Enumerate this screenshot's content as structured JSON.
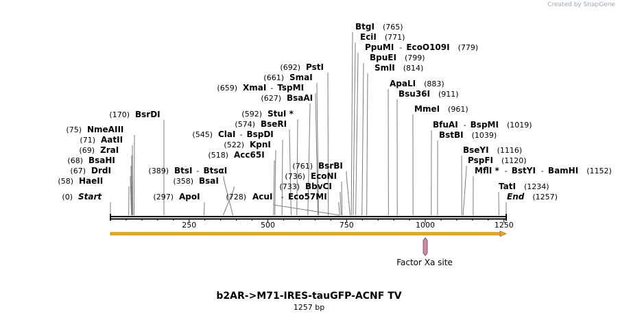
{
  "watermark": "Created by SnapGene",
  "title": "b2AR->M71-IRES-tauGFP-ACNF TV",
  "length_label": "1257 bp",
  "sequence_length": 1257,
  "ruler": {
    "ticks": [
      250,
      500,
      750,
      1000,
      1250
    ]
  },
  "feature": {
    "name": "Factor Xa site",
    "position": 1000,
    "color": "#d08aa6"
  },
  "orf": {
    "start": 1,
    "end": 1257,
    "color": "#f5a623"
  },
  "sites": [
    {
      "label": "Start",
      "pos": 0,
      "pos_label": "(0)",
      "italic": true,
      "side": "left"
    },
    {
      "label": "HaeII",
      "pos": 58,
      "pos_label": "(58)",
      "side": "left"
    },
    {
      "label": "DrdI",
      "pos": 67,
      "pos_label": "(67)",
      "side": "left"
    },
    {
      "label": "BsaHI",
      "pos": 68,
      "pos_label": "(68)",
      "side": "left"
    },
    {
      "label": "ZraI",
      "pos": 69,
      "pos_label": "(69)",
      "side": "left"
    },
    {
      "label": "AatII",
      "pos": 71,
      "pos_label": "(71)",
      "side": "left"
    },
    {
      "label": "NmeAIII",
      "pos": 75,
      "pos_label": "(75)",
      "side": "left"
    },
    {
      "label": "BsrDI",
      "pos": 170,
      "pos_label": "(170)",
      "side": "left"
    },
    {
      "label": "ApoI",
      "pos": 297,
      "pos_label": "(297)",
      "side": "left"
    },
    {
      "label": "BsaI",
      "pos": 358,
      "pos_label": "(358)",
      "side": "left"
    },
    {
      "label": "BtsI",
      "label2": "BtsαI",
      "pos": 389,
      "pos_label": "(389)",
      "side": "left"
    },
    {
      "label": "AcuI",
      "pos": 728,
      "pos_label": "(728)",
      "side": "right"
    },
    {
      "label": "Acc65I",
      "pos": 518,
      "pos_label": "(518)",
      "side": "left"
    },
    {
      "label": "KpnI",
      "pos": 522,
      "pos_label": "(522)",
      "side": "left"
    },
    {
      "label": "ClaI",
      "label2": "BspDI",
      "pos": 545,
      "pos_label": "(545)",
      "side": "left"
    },
    {
      "label": "BseRI",
      "pos": 574,
      "pos_label": "(574)",
      "side": "left"
    },
    {
      "label": "StuI *",
      "pos": 592,
      "pos_label": "(592)",
      "side": "left"
    },
    {
      "label": "BsaAI",
      "pos": 627,
      "pos_label": "(627)",
      "side": "left"
    },
    {
      "label": "XmaI",
      "label2": "TspMI",
      "pos": 659,
      "pos_label": "(659)",
      "side": "left"
    },
    {
      "label": "SmaI",
      "pos": 661,
      "pos_label": "(661)",
      "side": "left"
    },
    {
      "label": "PstI",
      "pos": 692,
      "pos_label": "(692)",
      "side": "left"
    },
    {
      "label": "Eco57MI",
      "pos": 728,
      "pos_label": "",
      "side": "left",
      "dash": true
    },
    {
      "label": "BbvCI",
      "pos": 733,
      "pos_label": "(733)",
      "side": "left"
    },
    {
      "label": "EcoNI",
      "pos": 736,
      "pos_label": "(736)",
      "side": "left"
    },
    {
      "label": "BsrBI",
      "pos": 761,
      "pos_label": "(761)",
      "side": "left"
    },
    {
      "label": "BtgI",
      "pos": 765,
      "pos_label": "(765)",
      "side": "right"
    },
    {
      "label": "EciI",
      "pos": 771,
      "pos_label": "(771)",
      "side": "right"
    },
    {
      "label": "PpuMI",
      "label2": "EcoO109I",
      "pos": 779,
      "pos_label": "(779)",
      "side": "right"
    },
    {
      "label": "BpuEI",
      "pos": 799,
      "pos_label": "(799)",
      "side": "right"
    },
    {
      "label": "SmlI",
      "pos": 814,
      "pos_label": "(814)",
      "side": "right"
    },
    {
      "label": "ApaLI",
      "pos": 883,
      "pos_label": "(883)",
      "side": "right"
    },
    {
      "label": "Bsu36I",
      "pos": 911,
      "pos_label": "(911)",
      "side": "right"
    },
    {
      "label": "MmeI",
      "pos": 961,
      "pos_label": "(961)",
      "side": "right"
    },
    {
      "label": "BfuAI",
      "label2": "BspMI",
      "pos": 1019,
      "pos_label": "(1019)",
      "side": "right"
    },
    {
      "label": "BstBI",
      "pos": 1039,
      "pos_label": "(1039)",
      "side": "right"
    },
    {
      "label": "BseYI",
      "pos": 1116,
      "pos_label": "(1116)",
      "side": "right"
    },
    {
      "label": "PspFI",
      "pos": 1120,
      "pos_label": "(1120)",
      "side": "right"
    },
    {
      "label": "MflI *",
      "label2": "BstYI",
      "label3": "BamHI",
      "pos": 1152,
      "pos_label": "(1152)",
      "side": "right"
    },
    {
      "label": "TatI",
      "pos": 1234,
      "pos_label": "(1234)",
      "side": "right"
    },
    {
      "label": "End",
      "pos": 1257,
      "pos_label": "(1257)",
      "italic": true,
      "side": "right"
    }
  ]
}
